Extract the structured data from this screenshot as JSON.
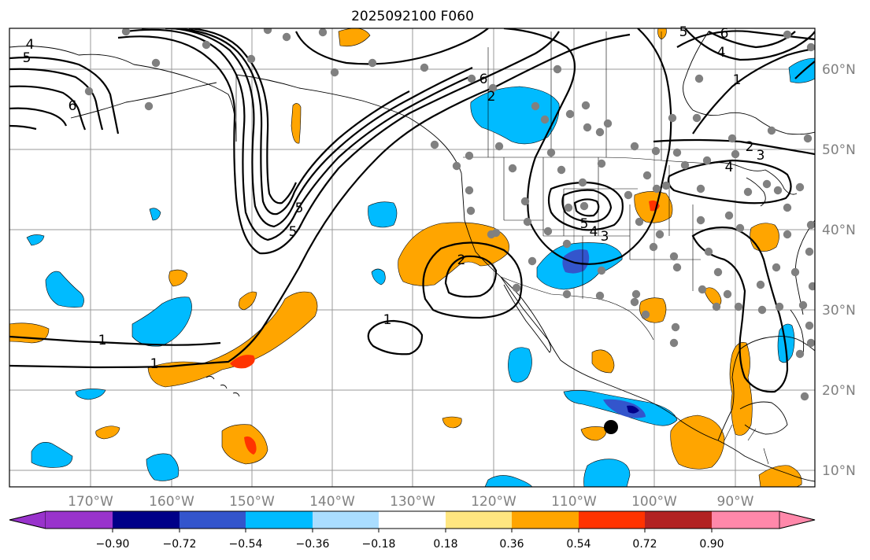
{
  "title": "2025092100 F060",
  "lon_labels": [
    "170°W",
    "160°W",
    "150°W",
    "140°W",
    "130°W",
    "120°W",
    "110°W",
    "100°W",
    "90°W"
  ],
  "lat_labels": [
    "60°N",
    "50°N",
    "40°N",
    "30°N",
    "20°N",
    "10°N"
  ],
  "colorbar": {
    "tick_labels": [
      "−0.90",
      "−0.72",
      "−0.54",
      "−0.36",
      "−0.18",
      "0.18",
      "0.36",
      "0.54",
      "0.72",
      "0.90"
    ],
    "colors": [
      "#9933cc",
      "#000088",
      "#3355cc",
      "#00bbff",
      "#aaddff",
      "#ffffff",
      "#ffe680",
      "#ffa500",
      "#ff3300",
      "#b22222",
      "#ff88aa"
    ]
  },
  "contour_labels": [
    "4",
    "5",
    "6",
    "5",
    "6",
    "4",
    "1",
    "2",
    "3",
    "4",
    "5",
    "4",
    "3",
    "2",
    "1",
    "1",
    "1",
    "5",
    "5",
    "6",
    "2"
  ],
  "colors": {
    "orange": "#ffa500",
    "red": "#ff3300",
    "cyan": "#00bbff",
    "blue": "#3355cc",
    "navy": "#000088",
    "station": "#808080"
  }
}
